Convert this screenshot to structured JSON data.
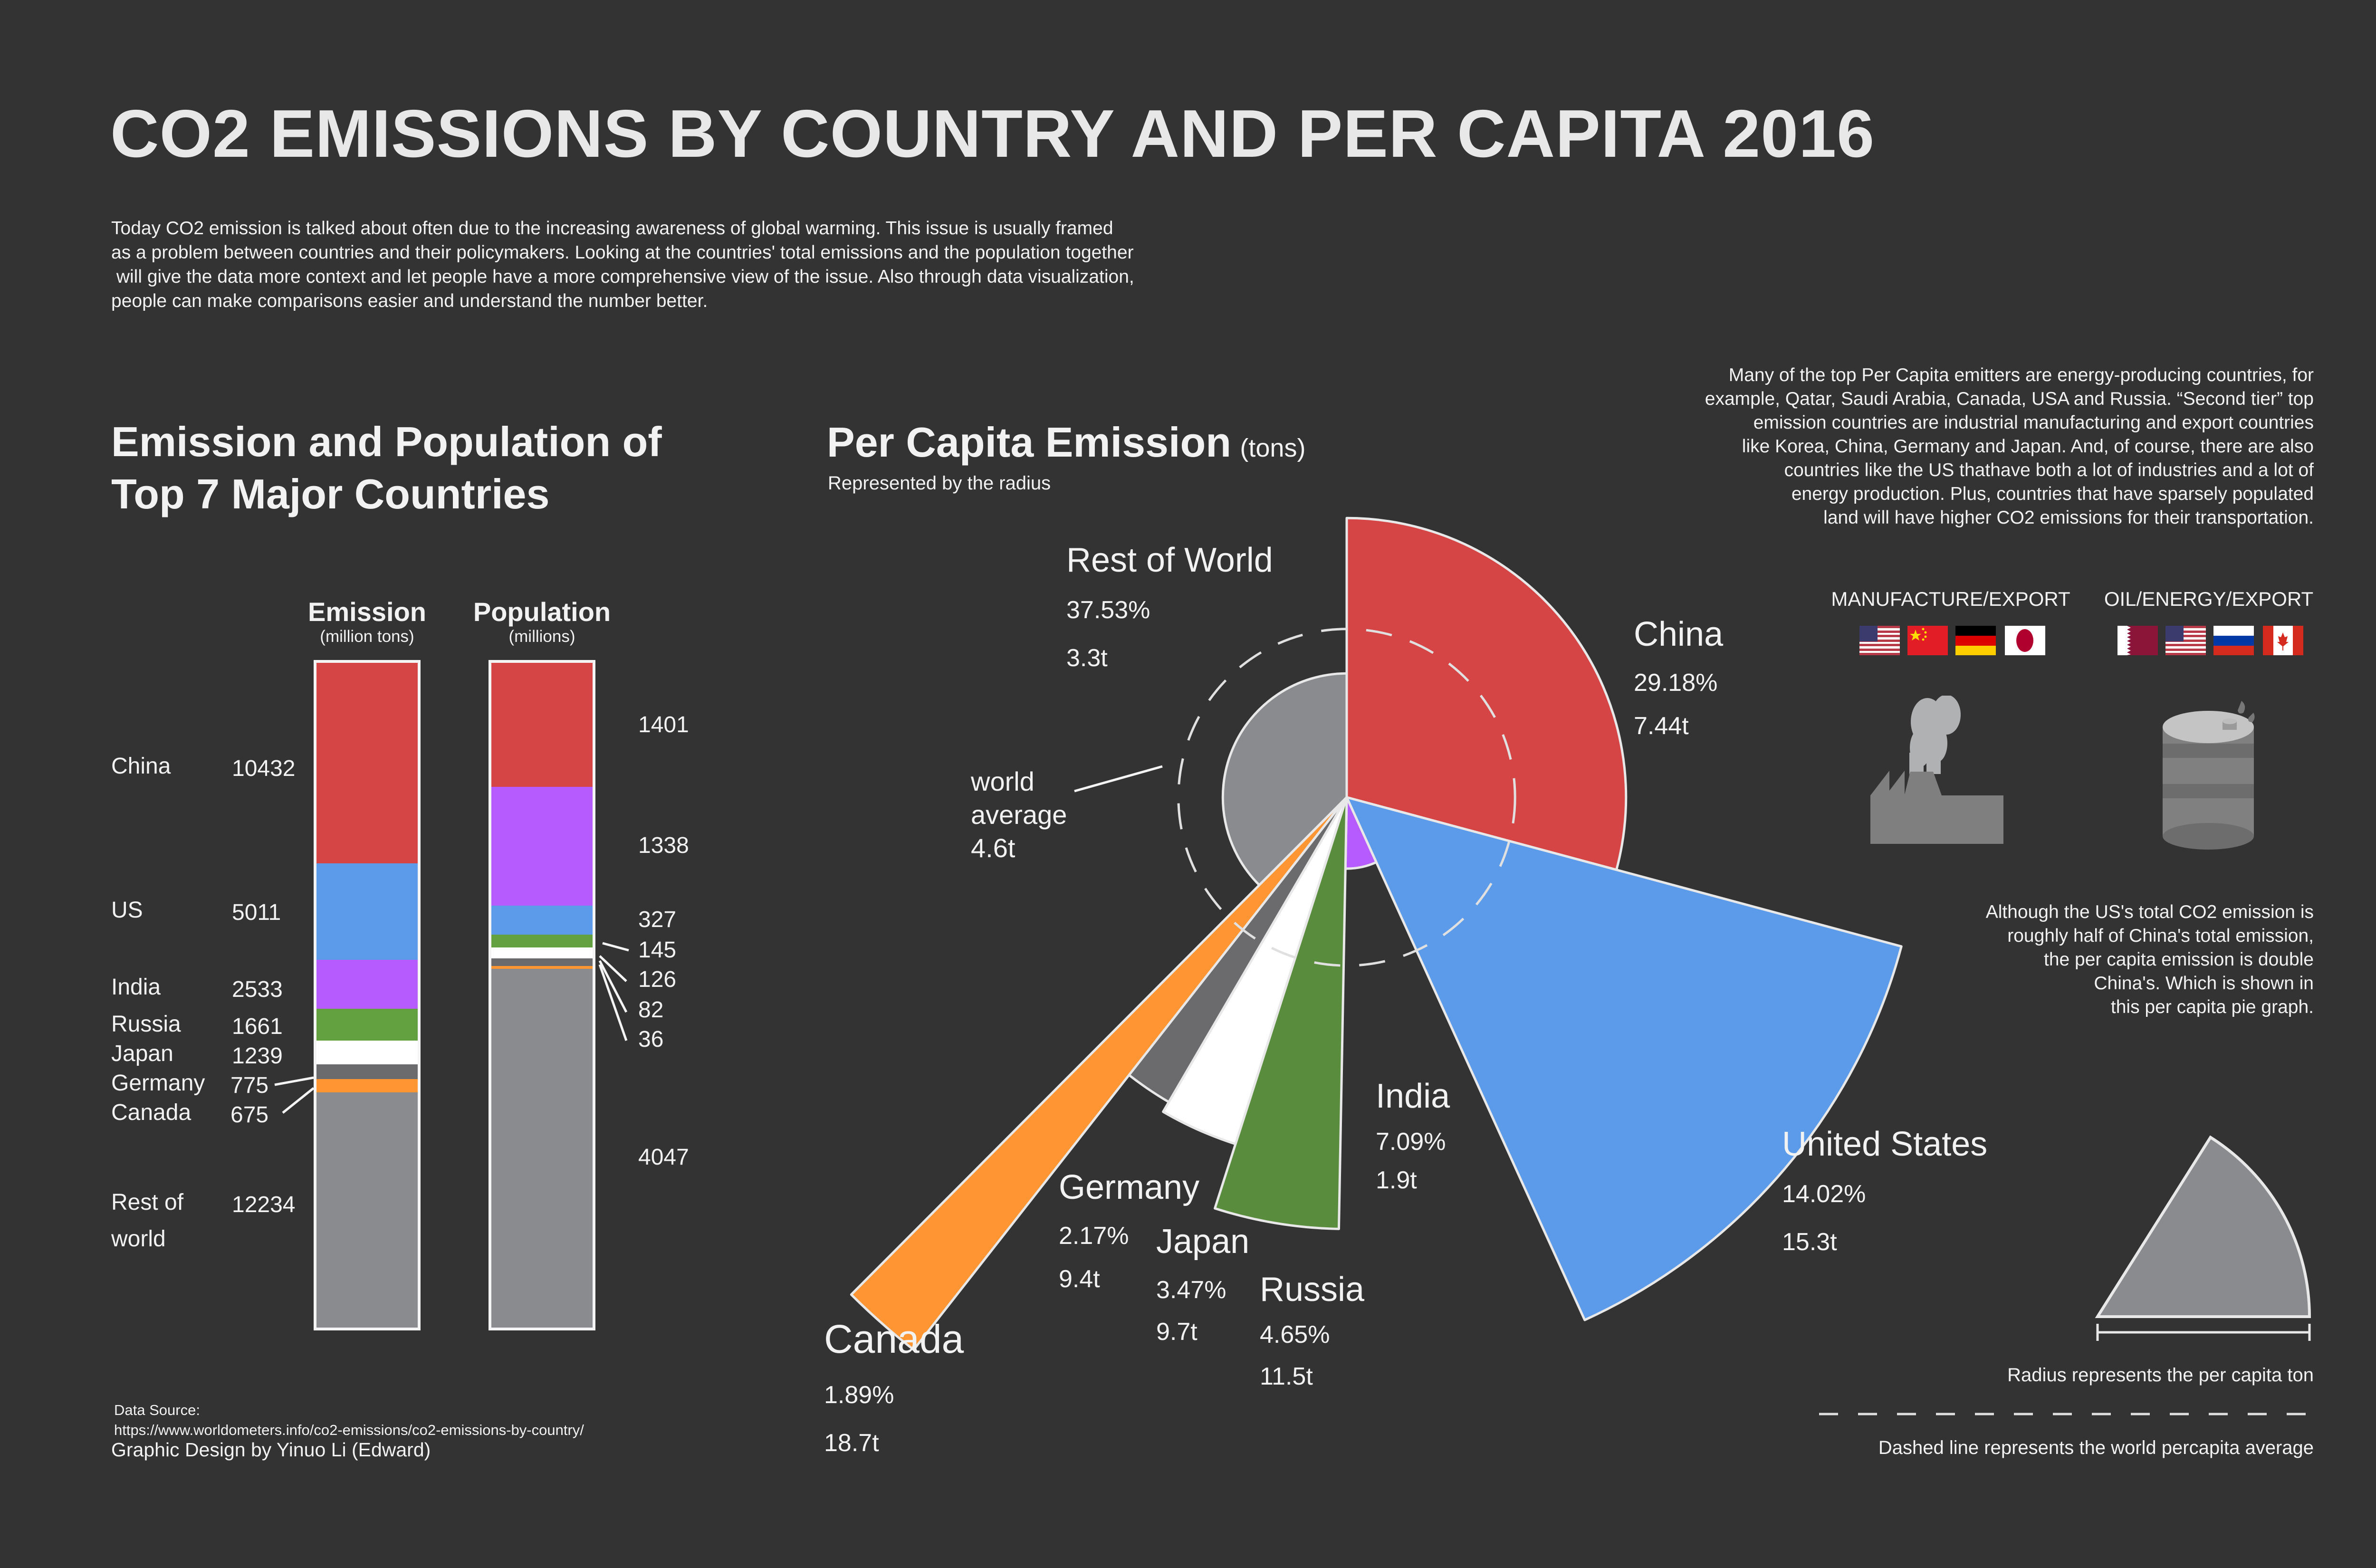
{
  "header": {
    "title": "CO2 EMISSIONS BY COUNTRY AND PER CAPITA 2016",
    "intro": "Today CO2 emission is talked about often due to the increasing awareness of global warming. This issue is usually framed\nas a problem between countries and their policymakers. Looking at the countries' total emissions and the population together\n will give the data more context and let people have a more comprehensive view of the issue. Also through data visualization,\npeople can make comparisons easier and understand the number better."
  },
  "right_panel": {
    "paragraph": "Many of the top Per Capita emitters are energy-producing countries, for\nexample, Qatar, Saudi Arabia, Canada, USA and Russia. “Second tier” top\nemission countries are industrial manufacturing and export countries\nlike Korea, China, Germany and Japan. And, of course, there are also\ncountries like the US thathave both a lot of industries and a lot of\nenergy production. Plus, countries that have sparsely populated\nland will have higher CO2 emissions for their transportation.",
    "categories": [
      {
        "label": "MANUFACTURE/EXPORT",
        "flags": [
          "usa-flag",
          "china-flag",
          "germany-flag",
          "japan-flag"
        ],
        "icon": "factory-icon"
      },
      {
        "label": "OIL/ENERGY/EXPORT",
        "flags": [
          "qatar-flag",
          "usa-flag",
          "russia-flag",
          "canada-flag"
        ],
        "icon": "oil-barrel-icon"
      }
    ],
    "note": "Although the US's total CO2 emission is\nroughly half of China's total emission,\nthe per capita emission is double\nChina's. Which is shown in\nthis per capita pie graph.",
    "legend_radius": "Radius represents the per capita ton",
    "legend_dashed": "Dashed line represents the world percapita average"
  },
  "footer": {
    "source_label": "Data Source:",
    "source_url": "https://www.worldometers.info/co2-emissions/co2-emissions-by-country/",
    "credit": "Graphic Design by Yinuo Li (Edward)"
  },
  "colors": {
    "background": "#333333",
    "china": "#d64545",
    "us": "#5b9bea",
    "india": "#b65cff",
    "russia_bar": "#63a040",
    "russia_pie": "#5a8c3e",
    "japan": "#ffffff",
    "germany": "#6b6b6d",
    "canada": "#ff9533",
    "rest": "#8a8b8e"
  },
  "chart_data": [
    {
      "type": "bar",
      "stacked": true,
      "title": "Emission and Population of Top 7 Major Countries",
      "series": [
        {
          "name": "Emission",
          "unit": "(million tons)",
          "categories": [
            "China",
            "US",
            "India",
            "Russia",
            "Japan",
            "Germany",
            "Canada",
            "Rest of world"
          ],
          "values": [
            10432,
            5011,
            2533,
            1661,
            1239,
            775,
            675,
            12234
          ],
          "colors": [
            "#d64545",
            "#5b9bea",
            "#b65cff",
            "#63a040",
            "#ffffff",
            "#6b6b6d",
            "#ff9533",
            "#8a8b8e"
          ]
        },
        {
          "name": "Population",
          "unit": "(millions)",
          "categories": [
            "China",
            "India",
            "US",
            "Russia",
            "Japan",
            "Germany",
            "Canada",
            "Rest of world"
          ],
          "values": [
            1401,
            1338,
            327,
            145,
            126,
            82,
            36,
            4047
          ],
          "colors": [
            "#d64545",
            "#b65cff",
            "#5b9bea",
            "#63a040",
            "#ffffff",
            "#6b6b6d",
            "#ff9533",
            "#8a8b8e"
          ]
        }
      ],
      "row_labels": [
        "China",
        "US",
        "India",
        "Russia",
        "Japan",
        "Germany",
        "Canada",
        "Rest of",
        "world"
      ]
    },
    {
      "type": "pie",
      "variant": "polar-area (angle = share of emissions, radius = per capita tons)",
      "title": "Per Capita Emission",
      "unit": "(tons)",
      "subtitle": "Represented by the radius",
      "world_average": {
        "label_lines": [
          "world",
          "average"
        ],
        "value": 4.6,
        "value_label": "4.6t"
      },
      "slices": [
        {
          "name": "China",
          "share": 29.18,
          "per_capita": 7.44,
          "color": "#d64545"
        },
        {
          "name": "United States",
          "share": 14.02,
          "per_capita": 15.3,
          "color": "#5b9bea"
        },
        {
          "name": "India",
          "share": 7.09,
          "per_capita": 1.9,
          "color": "#b65cff"
        },
        {
          "name": "Russia",
          "share": 4.65,
          "per_capita": 11.5,
          "color": "#5a8c3e"
        },
        {
          "name": "Japan",
          "share": 3.47,
          "per_capita": 9.7,
          "color": "#ffffff"
        },
        {
          "name": "Germany",
          "share": 2.17,
          "per_capita": 9.4,
          "color": "#6b6b6d"
        },
        {
          "name": "Canada",
          "share": 1.89,
          "per_capita": 18.7,
          "color": "#ff9533"
        },
        {
          "name": "Rest of World",
          "share": 37.53,
          "per_capita": 3.3,
          "color": "#8a8b8e"
        }
      ]
    }
  ]
}
